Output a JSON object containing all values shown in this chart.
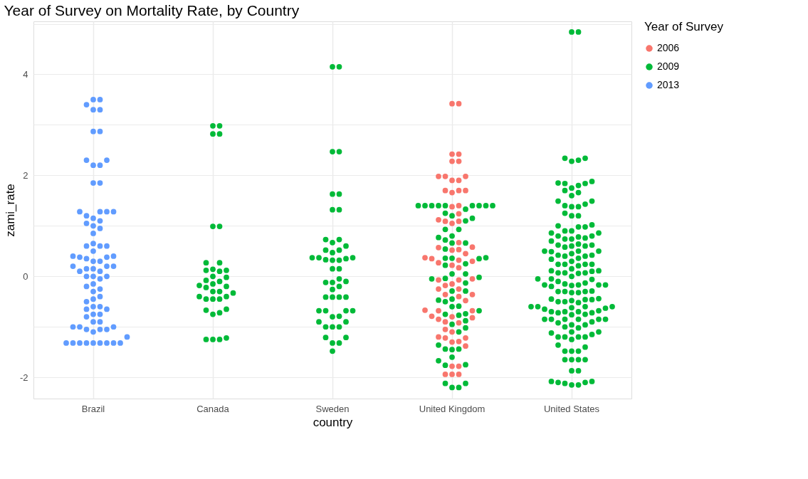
{
  "chart_data": {
    "type": "scatter",
    "title": "Year of Survey on Mortality Rate, by Country",
    "xlabel": "country",
    "ylabel": "zami_rate",
    "legend_title": "Year of Survey",
    "categories": [
      "Brazil",
      "Canada",
      "Sweden",
      "United Kingdom",
      "United States"
    ],
    "ylim": [
      -2.42,
      5.05
    ],
    "yticks": [
      {
        "value": -2,
        "label": "-2"
      },
      {
        "value": -1,
        "label": null
      },
      0,
      {
        "value": 1,
        "label": null
      },
      2,
      {
        "value": 3,
        "label": null
      },
      4,
      {
        "value": 5,
        "label": null
      }
    ],
    "grid": true,
    "legend": "right",
    "marker": "circle",
    "series": [
      {
        "name": "2006",
        "color": "#f8766d",
        "x": [
          "United Kingdom",
          "United Kingdom",
          "United Kingdom",
          "United Kingdom",
          "United Kingdom",
          "United Kingdom",
          "United Kingdom",
          "United Kingdom",
          "United Kingdom",
          "United Kingdom",
          "United Kingdom",
          "United Kingdom",
          "United Kingdom",
          "United Kingdom",
          "United Kingdom",
          "United Kingdom",
          "United Kingdom",
          "United Kingdom",
          "United Kingdom",
          "United Kingdom",
          "United Kingdom",
          "United Kingdom",
          "United Kingdom",
          "United Kingdom",
          "United Kingdom",
          "United Kingdom",
          "United Kingdom",
          "United Kingdom",
          "United Kingdom",
          "United Kingdom",
          "United Kingdom",
          "United Kingdom",
          "United Kingdom",
          "United Kingdom",
          "United Kingdom",
          "United Kingdom",
          "United Kingdom",
          "United Kingdom",
          "United Kingdom",
          "United Kingdom",
          "United Kingdom",
          "United Kingdom",
          "United Kingdom",
          "United Kingdom",
          "United Kingdom",
          "United Kingdom",
          "United Kingdom",
          "United Kingdom",
          "United Kingdom",
          "United Kingdom",
          "United Kingdom",
          "United Kingdom",
          "United Kingdom",
          "United Kingdom",
          "United Kingdom",
          "United Kingdom",
          "United Kingdom",
          "United Kingdom",
          "United Kingdom",
          "United Kingdom",
          "United Kingdom",
          "United Kingdom",
          "United Kingdom",
          "United Kingdom",
          "United Kingdom",
          "United Kingdom",
          "United Kingdom",
          "United Kingdom"
        ],
        "values": [
          3.42,
          3.42,
          2.42,
          2.42,
          2.28,
          2.28,
          1.98,
          1.98,
          1.98,
          1.9,
          1.9,
          1.66,
          1.7,
          1.7,
          1.7,
          1.38,
          1.4,
          1.24,
          1.09,
          1.09,
          1.12,
          1.05,
          0.67,
          0.58,
          0.57,
          0.53,
          0.52,
          0.45,
          0.37,
          0.32,
          0.27,
          0.35,
          0.3,
          0.22,
          0.17,
          -0.07,
          -0.05,
          -0.07,
          -0.18,
          -0.15,
          -0.25,
          -0.25,
          -0.36,
          -0.36,
          -0.48,
          -0.4,
          -0.68,
          -0.67,
          -0.68,
          -0.8,
          -0.79,
          -0.82,
          -0.85,
          -0.9,
          -0.92,
          -1.05,
          -1.1,
          -1.22,
          -1.22,
          -1.2,
          -1.29,
          -1.3,
          -1.38,
          -1.78,
          -1.78,
          -1.94,
          -1.94,
          -1.94
        ]
      },
      {
        "name": "2009",
        "color": "#00ba38",
        "x": [
          "Canada",
          "Canada",
          "Canada",
          "Canada",
          "Canada",
          "Canada",
          "Canada",
          "Canada",
          "Canada",
          "Canada",
          "Canada",
          "Canada",
          "Canada",
          "Canada",
          "Canada",
          "Canada",
          "Canada",
          "Canada",
          "Canada",
          "Canada",
          "Canada",
          "Canada",
          "Canada",
          "Canada",
          "Canada",
          "Canada",
          "Canada",
          "Canada",
          "Canada",
          "Canada",
          "Canada",
          "Canada",
          "Canada",
          "Canada",
          "Canada",
          "Canada",
          "Sweden",
          "Sweden",
          "Sweden",
          "Sweden",
          "Sweden",
          "Sweden",
          "Sweden",
          "Sweden",
          "Sweden",
          "Sweden",
          "Sweden",
          "Sweden",
          "Sweden",
          "Sweden",
          "Sweden",
          "Sweden",
          "Sweden",
          "Sweden",
          "Sweden",
          "Sweden",
          "Sweden",
          "Sweden",
          "Sweden",
          "Sweden",
          "Sweden",
          "Sweden",
          "Sweden",
          "Sweden",
          "Sweden",
          "Sweden",
          "Sweden",
          "Sweden",
          "Sweden",
          "Sweden",
          "Sweden",
          "Sweden",
          "Sweden",
          "Sweden",
          "Sweden",
          "Sweden",
          "Sweden",
          "Sweden",
          "Sweden",
          "Sweden",
          "Sweden",
          "Sweden",
          "Sweden",
          "Sweden",
          "Sweden",
          "Sweden",
          "United Kingdom",
          "United Kingdom",
          "United Kingdom",
          "United Kingdom",
          "United Kingdom",
          "United Kingdom",
          "United Kingdom",
          "United Kingdom",
          "United Kingdom",
          "United Kingdom",
          "United Kingdom",
          "United Kingdom",
          "United Kingdom",
          "United Kingdom",
          "United Kingdom",
          "United Kingdom",
          "United Kingdom",
          "United Kingdom",
          "United Kingdom",
          "United Kingdom",
          "United Kingdom",
          "United Kingdom",
          "United Kingdom",
          "United Kingdom",
          "United Kingdom",
          "United Kingdom",
          "United Kingdom",
          "United Kingdom",
          "United Kingdom",
          "United Kingdom",
          "United Kingdom",
          "United Kingdom",
          "United Kingdom",
          "United Kingdom",
          "United Kingdom",
          "United Kingdom",
          "United Kingdom",
          "United Kingdom",
          "United Kingdom",
          "United Kingdom",
          "United Kingdom",
          "United Kingdom",
          "United Kingdom",
          "United Kingdom",
          "United Kingdom",
          "United Kingdom",
          "United Kingdom",
          "United Kingdom",
          "United Kingdom",
          "United Kingdom",
          "United Kingdom",
          "United Kingdom",
          "United Kingdom",
          "United Kingdom",
          "United Kingdom",
          "United Kingdom",
          "United Kingdom",
          "United Kingdom",
          "United Kingdom",
          "United Kingdom",
          "United Kingdom",
          "United States",
          "United States",
          "United States",
          "United States",
          "United States",
          "United States",
          "United States",
          "United States",
          "United States",
          "United States",
          "United States",
          "United States",
          "United States",
          "United States",
          "United States",
          "United States",
          "United States",
          "United States",
          "United States",
          "United States",
          "United States",
          "United States",
          "United States",
          "United States",
          "United States",
          "United States",
          "United States",
          "United States",
          "United States",
          "United States",
          "United States",
          "United States",
          "United States",
          "United States",
          "United States",
          "United States",
          "United States",
          "United States",
          "United States",
          "United States",
          "United States",
          "United States",
          "United States",
          "United States",
          "United States",
          "United States",
          "United States",
          "United States",
          "United States",
          "United States",
          "United States",
          "United States",
          "United States",
          "United States",
          "United States",
          "United States",
          "United States",
          "United States",
          "United States",
          "United States",
          "United States",
          "United States",
          "United States",
          "United States",
          "United States",
          "United States",
          "United States",
          "United States",
          "United States",
          "United States",
          "United States",
          "United States",
          "United States",
          "United States",
          "United States",
          "United States",
          "United States",
          "United States",
          "United States",
          "United States",
          "United States",
          "United States",
          "United States",
          "United States",
          "United States",
          "United States",
          "United States",
          "United States",
          "United States",
          "United States",
          "United States",
          "United States",
          "United States",
          "United States",
          "United States",
          "United States",
          "United States",
          "United States",
          "United States",
          "United States",
          "United States",
          "United States",
          "United States",
          "United States",
          "United States",
          "United States",
          "United States",
          "United States",
          "United States",
          "United States",
          "United States",
          "United States",
          "United States",
          "United States",
          "United States",
          "United States",
          "United States",
          "United States",
          "United States",
          "United States",
          "United States",
          "United States",
          "United States",
          "United States",
          "United States",
          "United States",
          "United States",
          "United States",
          "United States",
          "United States",
          "United States",
          "United States",
          "United States",
          "United States",
          "United States",
          "United States",
          "United States",
          "United States",
          "United States",
          "United States",
          "United States",
          "United States",
          "United States",
          "United States",
          "United States",
          "United States",
          "United States",
          "United States",
          "United States",
          "United States",
          "United States"
        ],
        "values": [
          2.98,
          2.98,
          2.82,
          2.82,
          0.99,
          0.99,
          0.27,
          0.27,
          0.1,
          0.12,
          0.12,
          0.0,
          -0.1,
          -0.2,
          -0.3,
          -0.45,
          0.14,
          -0.08,
          -0.02,
          -0.15,
          -0.4,
          -0.45,
          -0.33,
          -0.18,
          -0.22,
          -0.3,
          -0.4,
          -0.45,
          -0.72,
          -0.67,
          -0.65,
          -0.75,
          -1.25,
          -1.25,
          -1.25,
          -1.22,
          4.15,
          4.15,
          2.47,
          2.47,
          1.63,
          1.63,
          1.32,
          1.32,
          0.73,
          0.73,
          0.67,
          0.6,
          0.52,
          0.52,
          0.47,
          0.37,
          0.32,
          0.32,
          0.35,
          0.37,
          0.37,
          0.33,
          0.15,
          0.15,
          -0.1,
          -0.12,
          -0.05,
          -0.12,
          -0.2,
          -0.26,
          -0.41,
          -0.41,
          -0.41,
          -0.41,
          -0.68,
          -0.68,
          -0.68,
          -0.68,
          -0.79,
          -0.8,
          -0.9,
          -0.9,
          -1.0,
          -1.0,
          -1.0,
          -1.21,
          -1.21,
          -1.32,
          -1.32,
          -1.48,
          1.4,
          1.4,
          1.4,
          1.4,
          1.4,
          1.4,
          1.4,
          1.4,
          1.4,
          1.33,
          1.2,
          1.15,
          1.25,
          1.1,
          0.93,
          0.93,
          0.77,
          0.8,
          0.72,
          0.66,
          0.66,
          0.54,
          0.36,
          0.36,
          0.37,
          0.35,
          0.25,
          0.22,
          0.05,
          0.05,
          -0.04,
          -0.02,
          -0.05,
          -0.13,
          -0.29,
          -0.29,
          -0.47,
          -0.5,
          -0.45,
          -0.59,
          -0.6,
          -0.68,
          -0.75,
          -0.74,
          -0.77,
          -0.88,
          -1.02,
          -0.95,
          -1.1,
          -1.36,
          -1.44,
          -1.44,
          -1.45,
          -1.67,
          -1.6,
          -1.76,
          -1.75,
          -2.12,
          -2.12,
          -2.2,
          -2.2,
          4.84,
          4.84,
          2.34,
          2.34,
          2.3,
          2.28,
          1.88,
          1.84,
          1.8,
          1.75,
          1.84,
          1.85,
          1.7,
          1.6,
          1.66,
          1.49,
          1.49,
          1.43,
          1.38,
          1.38,
          1.2,
          1.2,
          0.98,
          1.02,
          0.98,
          0.9,
          0.86,
          0.78,
          0.86,
          0.9,
          0.74,
          0.76,
          0.74,
          0.8,
          0.7,
          0.62,
          0.6,
          0.62,
          0.64,
          0.58,
          0.6,
          0.49,
          0.45,
          0.5,
          0.5,
          0.5,
          0.42,
          0.42,
          0.4,
          0.34,
          0.36,
          0.3,
          0.24,
          0.21,
          0.24,
          0.24,
          0.24,
          0.11,
          0.11,
          0.1,
          0.15,
          0.07,
          0.06,
          0.07,
          0.07,
          -0.05,
          -0.06,
          -0.1,
          -0.05,
          -0.17,
          -0.18,
          -0.13,
          -0.17,
          -0.15,
          -0.17,
          -0.17,
          -0.2,
          -0.29,
          -0.3,
          -0.32,
          -0.32,
          -0.3,
          -0.45,
          -0.44,
          -0.46,
          -0.46,
          -0.5,
          -0.48,
          -0.52,
          -0.6,
          -0.65,
          -0.6,
          -0.62,
          -0.6,
          -0.63,
          -0.6,
          -0.7,
          -0.68,
          -0.72,
          -0.75,
          -0.7,
          -0.76,
          -0.72,
          -0.7,
          -0.85,
          -0.85,
          -0.85,
          -0.85,
          -0.85,
          -0.85,
          -0.96,
          -0.96,
          -0.92,
          -1.02,
          -1.0,
          -1.1,
          -1.12,
          -1.1,
          -1.2,
          -1.2,
          -1.2,
          -1.2,
          -1.25,
          -1.36,
          -1.4,
          -1.48,
          -1.48,
          -1.48,
          -1.65,
          -1.65,
          -1.65,
          -1.65,
          -1.87,
          -1.87,
          -2.1,
          -2.08,
          -2.1,
          -2.08,
          -2.15,
          -2.12,
          -2.15,
          1.0,
          0.8,
          0.4,
          0.0,
          -0.3,
          -0.5,
          -0.9,
          -1.15,
          1.4,
          1.25
        ]
      },
      {
        "name": "2013",
        "color": "#619cff",
        "x": [
          "Brazil",
          "Brazil",
          "Brazil",
          "Brazil",
          "Brazil",
          "Brazil",
          "Brazil",
          "Brazil",
          "Brazil",
          "Brazil",
          "Brazil",
          "Brazil",
          "Brazil",
          "Brazil",
          "Brazil",
          "Brazil",
          "Brazil",
          "Brazil",
          "Brazil",
          "Brazil",
          "Brazil",
          "Brazil",
          "Brazil",
          "Brazil",
          "Brazil",
          "Brazil",
          "Brazil",
          "Brazil",
          "Brazil",
          "Brazil",
          "Brazil",
          "Brazil",
          "Brazil",
          "Brazil",
          "Brazil",
          "Brazil",
          "Brazil",
          "Brazil",
          "Brazil",
          "Brazil",
          "Brazil",
          "Brazil",
          "Brazil",
          "Brazil",
          "Brazil",
          "Brazil",
          "Brazil",
          "Brazil",
          "Brazil",
          "Brazil",
          "Brazil",
          "Brazil",
          "Brazil",
          "Brazil",
          "Brazil",
          "Brazil",
          "Brazil",
          "Brazil",
          "Brazil",
          "Brazil",
          "Brazil",
          "Brazil",
          "Brazil",
          "Brazil",
          "Brazil",
          "Brazil",
          "Brazil",
          "Brazil",
          "Brazil",
          "Brazil",
          "Brazil",
          "Brazil",
          "Brazil",
          "Brazil",
          "Brazil",
          "Brazil",
          "Brazil",
          "Brazil",
          "Brazil",
          "Brazil"
        ],
        "values": [
          2.87,
          2.87,
          3.5,
          3.4,
          3.3,
          3.5,
          3.3,
          2.3,
          2.2,
          2.3,
          2.2,
          1.85,
          1.85,
          1.28,
          1.28,
          1.28,
          1.28,
          1.15,
          1.05,
          1.2,
          1.1,
          1.0,
          0.95,
          0.85,
          0.65,
          0.6,
          0.5,
          0.6,
          0.3,
          0.38,
          0.4,
          0.35,
          0.4,
          0.38,
          0.15,
          0.2,
          0.2,
          0.1,
          0.15,
          0.0,
          0.0,
          -0.05,
          -0.15,
          -0.25,
          -0.45,
          -0.4,
          -0.5,
          -0.6,
          -0.65,
          -0.75,
          -0.8,
          -0.9,
          -0.65,
          -0.75,
          -0.9,
          -1.0,
          -1.0,
          -1.1,
          -1.05,
          -1.05,
          -1.05,
          -1.32,
          -1.32,
          -1.32,
          -1.32,
          -1.32,
          -1.32,
          -1.32,
          -1.32,
          -1.32,
          -1.2,
          -0.6,
          -0.3,
          0.0,
          0.3,
          0.6,
          -1.0,
          -0.2,
          0.2,
          0.1
        ]
      }
    ]
  }
}
